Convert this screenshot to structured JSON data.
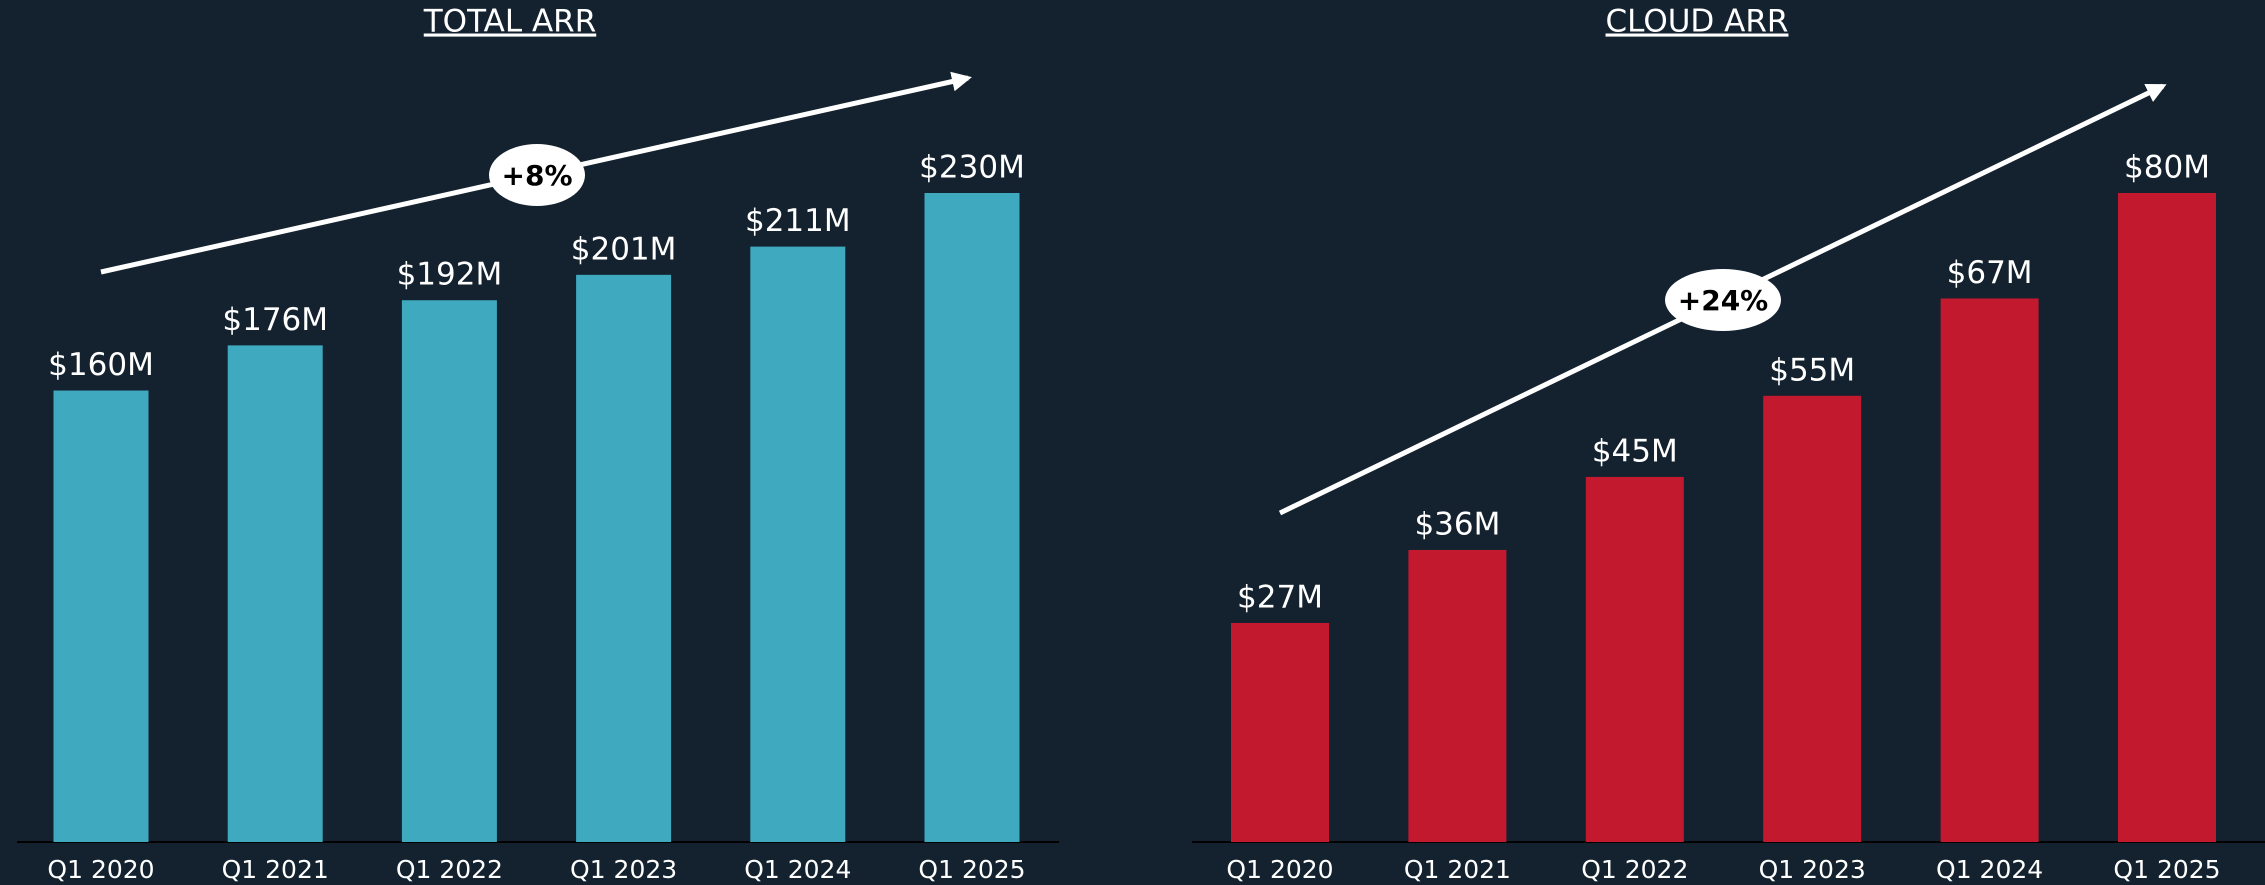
{
  "chart_data": [
    {
      "type": "bar",
      "title": "TOTAL ARR",
      "annotation": "+8%",
      "categories": [
        "Q1 2020",
        "Q1 2021",
        "Q1 2022",
        "Q1 2023",
        "Q1 2024",
        "Q1 2025"
      ],
      "values": [
        160,
        176,
        192,
        201,
        211,
        230
      ],
      "value_labels": [
        "$160M",
        "$176M",
        "$192M",
        "$201M",
        "$211M",
        "$230M"
      ],
      "color": "#3fa9c0"
    },
    {
      "type": "bar",
      "title": "CLOUD ARR",
      "annotation": "+24%",
      "categories": [
        "Q1 2020",
        "Q1 2021",
        "Q1 2022",
        "Q1 2023",
        "Q1 2024",
        "Q1 2025"
      ],
      "values": [
        27,
        36,
        45,
        55,
        67,
        80
      ],
      "value_labels": [
        "$27M",
        "$36M",
        "$45M",
        "$55M",
        "$67M",
        "$80M"
      ],
      "color": "#c3192e"
    }
  ]
}
